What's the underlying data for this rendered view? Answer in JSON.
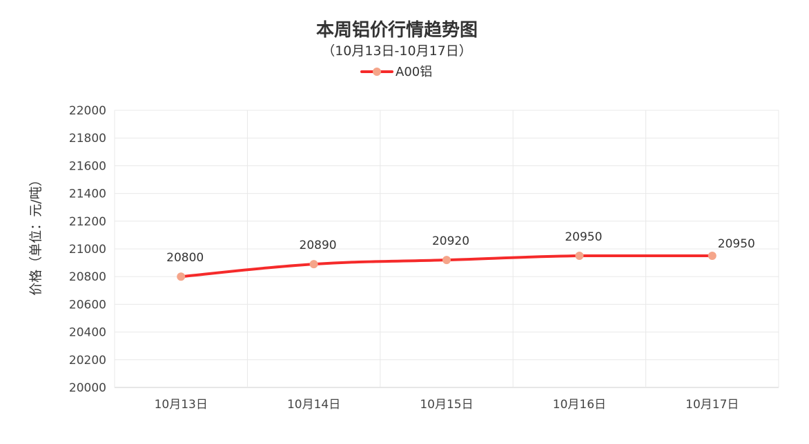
{
  "chart_data": {
    "type": "line",
    "title": "本周铝价行情趋势图",
    "subtitle": "（10月13日-10月17日）",
    "ylabel": "价格（单位：元/吨）",
    "xlabel": "",
    "categories": [
      "10月13日",
      "10月14日",
      "10月15日",
      "10月16日",
      "10月17日"
    ],
    "series": [
      {
        "name": "A00铝",
        "values": [
          20800,
          20890,
          20920,
          20950,
          20950
        ],
        "color": "#f52a2a",
        "marker_color": "#f5a58a"
      }
    ],
    "ylim": [
      20000,
      22000
    ],
    "yticks": [
      20000,
      20200,
      20400,
      20600,
      20800,
      21000,
      21200,
      21400,
      21600,
      21800,
      22000
    ],
    "grid": true,
    "legend_position": "top-center",
    "smooth": true
  }
}
